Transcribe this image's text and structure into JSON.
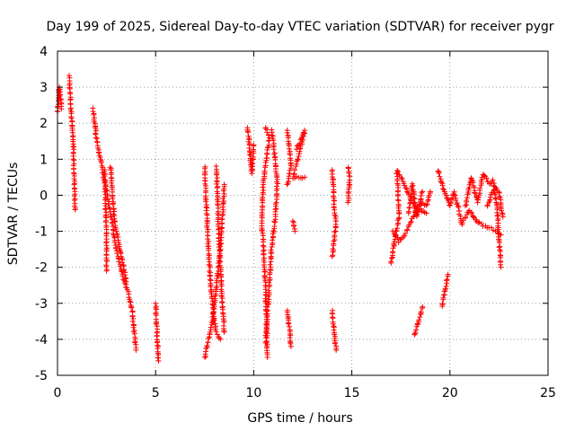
{
  "chart_data": {
    "type": "scatter",
    "title": "Day 199 of 2025, Sidereal Day-to-day VTEC variation (SDTVAR) for receiver pygr",
    "xlabel": "GPS time / hours",
    "ylabel": "SDTVAR / TECUs",
    "xlim": [
      0,
      25
    ],
    "ylim": [
      -5,
      4
    ],
    "xticks": [
      0,
      5,
      10,
      15,
      20,
      25
    ],
    "xtick_labels": [
      "0",
      "5",
      "10",
      "15",
      "20",
      "25"
    ],
    "yticks": [
      -5,
      -4,
      -3,
      -2,
      -1,
      0,
      1,
      2,
      3,
      4
    ],
    "ytick_labels": [
      "-5",
      "-4",
      "-3",
      "-2",
      "-1",
      "0",
      "1",
      "2",
      "3",
      "4"
    ],
    "grid": true,
    "marker": "+",
    "marker_color": "#ff0000",
    "series": [
      {
        "name": "SDTVAR",
        "tracks": [
          [
            [
              0.0,
              2.3
            ],
            [
              0.1,
              3.0
            ],
            [
              0.2,
              2.4
            ]
          ],
          [
            [
              0.6,
              3.3
            ],
            [
              0.7,
              2.2
            ],
            [
              0.8,
              1.5
            ],
            [
              0.9,
              -0.4
            ]
          ],
          [
            [
              1.8,
              2.4
            ],
            [
              1.9,
              2.0
            ],
            [
              2.0,
              1.5
            ],
            [
              2.2,
              1.0
            ],
            [
              2.4,
              0.4
            ],
            [
              2.6,
              -0.2
            ],
            [
              2.8,
              -0.8
            ],
            [
              3.0,
              -1.5
            ],
            [
              3.3,
              -2.2
            ],
            [
              3.6,
              -2.7
            ],
            [
              3.8,
              -3.2
            ],
            [
              4.0,
              -4.3
            ]
          ],
          [
            [
              2.4,
              0.7
            ],
            [
              2.5,
              -1.2
            ],
            [
              2.5,
              -2.1
            ]
          ],
          [
            [
              2.7,
              0.8
            ],
            [
              2.9,
              -0.7
            ],
            [
              3.1,
              -1.3
            ],
            [
              3.3,
              -1.8
            ],
            [
              3.5,
              -2.4
            ]
          ],
          [
            [
              5.0,
              -3.0
            ],
            [
              5.05,
              -3.6
            ],
            [
              5.1,
              -4.1
            ],
            [
              5.15,
              -4.6
            ]
          ],
          [
            [
              7.5,
              0.8
            ],
            [
              7.6,
              -0.5
            ],
            [
              7.7,
              -1.5
            ],
            [
              7.8,
              -2.5
            ],
            [
              7.9,
              -3.0
            ],
            [
              8.0,
              -3.5
            ],
            [
              8.1,
              -3.8
            ],
            [
              8.3,
              -4.0
            ]
          ],
          [
            [
              7.5,
              -4.5
            ],
            [
              7.7,
              -4.0
            ],
            [
              7.9,
              -3.5
            ],
            [
              8.1,
              -2.5
            ],
            [
              8.3,
              -1.5
            ],
            [
              8.5,
              0.3
            ]
          ],
          [
            [
              8.1,
              0.8
            ],
            [
              8.2,
              -0.8
            ],
            [
              8.3,
              -2.0
            ],
            [
              8.4,
              -3.0
            ],
            [
              8.5,
              -3.8
            ]
          ],
          [
            [
              9.7,
              1.9
            ],
            [
              9.8,
              1.2
            ],
            [
              9.9,
              0.6
            ],
            [
              10.0,
              1.4
            ]
          ],
          [
            [
              10.6,
              1.9
            ],
            [
              10.8,
              1.6
            ],
            [
              10.5,
              0.4
            ],
            [
              10.4,
              -0.7
            ],
            [
              10.5,
              -1.5
            ],
            [
              10.6,
              -2.5
            ],
            [
              10.65,
              -3.5
            ],
            [
              10.7,
              -4.5
            ]
          ],
          [
            [
              10.9,
              1.8
            ],
            [
              11.0,
              1.5
            ],
            [
              11.2,
              0.3
            ],
            [
              11.1,
              -0.6
            ],
            [
              10.9,
              -1.5
            ],
            [
              10.8,
              -2.5
            ],
            [
              10.7,
              -3.3
            ],
            [
              10.6,
              -4.1
            ]
          ],
          [
            [
              11.7,
              1.8
            ],
            [
              11.8,
              1.4
            ],
            [
              11.9,
              0.8
            ],
            [
              11.7,
              0.3
            ]
          ],
          [
            [
              11.7,
              -3.2
            ],
            [
              11.8,
              -3.6
            ],
            [
              11.9,
              -4.2
            ]
          ],
          [
            [
              12.2,
              1.3
            ],
            [
              12.6,
              1.8
            ],
            [
              12.0,
              0.5
            ],
            [
              12.6,
              0.5
            ]
          ],
          [
            [
              12.0,
              -0.7
            ],
            [
              12.1,
              -1.0
            ]
          ],
          [
            [
              14.0,
              0.7
            ],
            [
              14.1,
              -0.3
            ],
            [
              14.2,
              -0.8
            ],
            [
              14.0,
              -1.7
            ]
          ],
          [
            [
              14.0,
              -3.2
            ],
            [
              14.1,
              -3.8
            ],
            [
              14.2,
              -4.3
            ]
          ],
          [
            [
              14.8,
              0.8
            ],
            [
              14.9,
              0.5
            ],
            [
              14.8,
              -0.2
            ]
          ],
          [
            [
              17.0,
              -1.9
            ],
            [
              17.2,
              -1.2
            ],
            [
              17.4,
              -0.6
            ],
            [
              17.3,
              0.7
            ],
            [
              17.6,
              0.4
            ],
            [
              17.9,
              0.0
            ],
            [
              18.2,
              -0.3
            ],
            [
              18.5,
              -0.4
            ],
            [
              18.8,
              -0.5
            ]
          ],
          [
            [
              17.1,
              -1.0
            ],
            [
              17.4,
              -1.3
            ],
            [
              17.8,
              -1.0
            ],
            [
              18.2,
              -0.5
            ],
            [
              18.5,
              -0.2
            ],
            [
              18.8,
              -0.3
            ],
            [
              19.0,
              0.1
            ]
          ],
          [
            [
              17.9,
              -0.5
            ],
            [
              18.1,
              0.3
            ],
            [
              18.3,
              -0.6
            ],
            [
              18.6,
              0.1
            ]
          ],
          [
            [
              18.2,
              -3.9
            ],
            [
              18.4,
              -3.5
            ],
            [
              18.6,
              -3.1
            ]
          ],
          [
            [
              19.4,
              0.7
            ],
            [
              19.6,
              0.3
            ],
            [
              19.8,
              0.0
            ],
            [
              20.0,
              -0.3
            ],
            [
              20.2,
              0.1
            ],
            [
              20.4,
              -0.3
            ],
            [
              20.6,
              -0.8
            ],
            [
              20.8,
              -0.6
            ],
            [
              21.0,
              -0.4
            ],
            [
              21.3,
              -0.7
            ],
            [
              21.6,
              -0.8
            ],
            [
              22.0,
              -0.9
            ],
            [
              22.4,
              -1.0
            ],
            [
              22.6,
              -1.1
            ]
          ],
          [
            [
              19.6,
              -3.1
            ],
            [
              19.7,
              -2.8
            ],
            [
              19.8,
              -2.5
            ],
            [
              19.9,
              -2.2
            ]
          ],
          [
            [
              20.8,
              -0.3
            ],
            [
              21.0,
              0.3
            ],
            [
              21.1,
              0.5
            ],
            [
              21.4,
              -0.2
            ],
            [
              21.7,
              0.6
            ],
            [
              22.0,
              0.3
            ],
            [
              22.2,
              0.4
            ],
            [
              22.4,
              -0.3
            ],
            [
              22.6,
              -2.0
            ]
          ],
          [
            [
              21.9,
              -0.3
            ],
            [
              22.1,
              0.0
            ],
            [
              22.3,
              0.2
            ],
            [
              22.5,
              0.1
            ],
            [
              22.7,
              -0.6
            ]
          ]
        ]
      }
    ]
  }
}
